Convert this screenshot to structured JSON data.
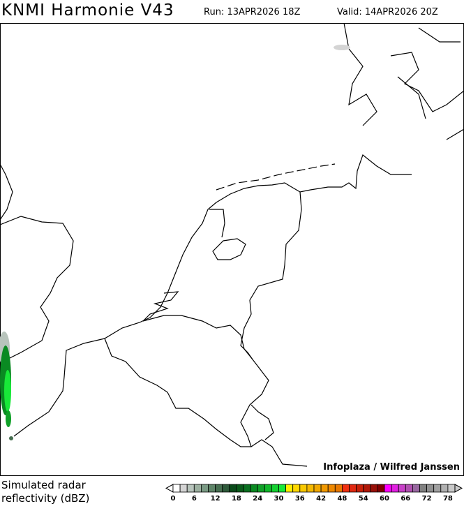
{
  "header": {
    "title": "KNMI Harmonie V43",
    "run": "Run: 13APR2026 18Z",
    "valid": "Valid: 14APR2026 20Z"
  },
  "credit": "Infoplaza / Wilfred Janssen",
  "legend": {
    "label_line1": "Simulated radar",
    "label_line2": "reflectivity (dBZ)",
    "ticks": [
      "0",
      "6",
      "12",
      "18",
      "24",
      "30",
      "36",
      "42",
      "48",
      "54",
      "60",
      "66",
      "72",
      "78"
    ],
    "colors": [
      "#ffffff",
      "#d4d4d4",
      "#b8c4bc",
      "#9cb0a0",
      "#7a9a84",
      "#5e8468",
      "#466e50",
      "#2e5a3a",
      "#0a4a1a",
      "#0a5a1a",
      "#0a7020",
      "#0a8a22",
      "#10a028",
      "#10b82a",
      "#14d030",
      "#18e838",
      "#ffee00",
      "#ffd800",
      "#f8c800",
      "#f4b800",
      "#f0a800",
      "#f09800",
      "#ee8800",
      "#e87800",
      "#f03010",
      "#e02810",
      "#c82008",
      "#b01808",
      "#981008",
      "#800000",
      "#ff00ff",
      "#e020e0",
      "#c840c8",
      "#b050b0",
      "#9868a0",
      "#808080",
      "#909090",
      "#a0a0a0",
      "#b0b0b0",
      "#c8c8c8"
    ]
  }
}
